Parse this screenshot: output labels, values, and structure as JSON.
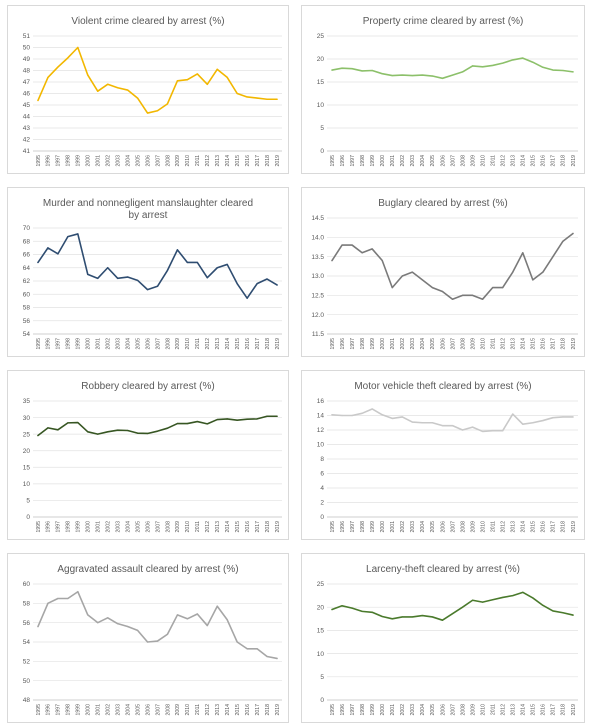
{
  "chart_data": [
    {
      "type": "line",
      "title": "Violent crime cleared by arrest (%)",
      "color": "#f2b700",
      "ylim": [
        41,
        51
      ],
      "ystep": 1,
      "grid": true,
      "x": [
        "1995",
        "1996",
        "1997",
        "1998",
        "1999",
        "2000",
        "2001",
        "2002",
        "2003",
        "2004",
        "2005",
        "2006",
        "2007",
        "2008",
        "2009",
        "2010",
        "2011",
        "2012",
        "2013",
        "2014",
        "2015",
        "2016",
        "2017",
        "2018",
        "2019"
      ],
      "series": [
        {
          "values": [
            45.4,
            47.4,
            48.3,
            49.1,
            50.0,
            47.6,
            46.2,
            46.8,
            46.5,
            46.3,
            45.6,
            44.3,
            44.5,
            45.1,
            47.1,
            47.2,
            47.7,
            46.8,
            48.1,
            47.4,
            46.0,
            45.7,
            45.6,
            45.5,
            45.5
          ]
        }
      ]
    },
    {
      "type": "line",
      "title": "Property crime cleared by arrest (%)",
      "color": "#8cc06a",
      "ylim": [
        0,
        25
      ],
      "ystep": 5,
      "grid": true,
      "x": [
        "1995",
        "1996",
        "1997",
        "1998",
        "1999",
        "2000",
        "2001",
        "2002",
        "2003",
        "2004",
        "2005",
        "2006",
        "2007",
        "2008",
        "2009",
        "2010",
        "2011",
        "2012",
        "2013",
        "2014",
        "2015",
        "2016",
        "2017",
        "2018",
        "2019"
      ],
      "series": [
        {
          "values": [
            17.6,
            18.0,
            17.9,
            17.4,
            17.5,
            16.8,
            16.4,
            16.5,
            16.4,
            16.5,
            16.3,
            15.8,
            16.5,
            17.2,
            18.5,
            18.3,
            18.6,
            19.1,
            19.8,
            20.2,
            19.3,
            18.2,
            17.6,
            17.5,
            17.2
          ]
        }
      ]
    },
    {
      "type": "line",
      "title": "Murder and nonnegligent manslaughter cleared by arrest",
      "title_lines": [
        "Murder and nonnegligent manslaughter cleared",
        "by arrest"
      ],
      "color": "#2f4d71",
      "ylim": [
        54,
        70
      ],
      "ystep": 2,
      "grid": true,
      "x": [
        "1995",
        "1996",
        "1997",
        "1998",
        "1999",
        "2000",
        "2001",
        "2002",
        "2003",
        "2004",
        "2005",
        "2006",
        "2007",
        "2008",
        "2009",
        "2010",
        "2011",
        "2012",
        "2013",
        "2014",
        "2015",
        "2016",
        "2017",
        "2018",
        "2019"
      ],
      "series": [
        {
          "values": [
            64.8,
            67.0,
            66.1,
            68.7,
            69.1,
            63.0,
            62.4,
            64.0,
            62.4,
            62.6,
            62.1,
            60.7,
            61.2,
            63.6,
            66.7,
            64.8,
            64.8,
            62.5,
            64.0,
            64.5,
            61.6,
            59.4,
            61.6,
            62.3,
            61.4
          ]
        }
      ]
    },
    {
      "type": "line",
      "title": "Buglary cleared by arrest (%)",
      "color": "#7a7a7a",
      "ylim": [
        11.5,
        14.5
      ],
      "ystep": 0.5,
      "grid": true,
      "x": [
        "1995",
        "1996",
        "1997",
        "1998",
        "1999",
        "2000",
        "2001",
        "2002",
        "2003",
        "2004",
        "2005",
        "2006",
        "2007",
        "2008",
        "2009",
        "2010",
        "2011",
        "2012",
        "2013",
        "2014",
        "2015",
        "2016",
        "2017",
        "2018",
        "2019"
      ],
      "series": [
        {
          "values": [
            13.4,
            13.8,
            13.8,
            13.6,
            13.7,
            13.4,
            12.7,
            13.0,
            13.1,
            12.9,
            12.7,
            12.6,
            12.4,
            12.5,
            12.5,
            12.4,
            12.7,
            12.7,
            13.1,
            13.6,
            12.9,
            13.1,
            13.5,
            13.9,
            14.1
          ]
        }
      ]
    },
    {
      "type": "line",
      "title": "Robbery cleared by arrest (%)",
      "color": "#375623",
      "ylim": [
        0,
        35
      ],
      "ystep": 5,
      "grid": true,
      "x": [
        "1995",
        "1996",
        "1997",
        "1998",
        "1999",
        "2000",
        "2001",
        "2002",
        "2003",
        "2004",
        "2005",
        "2006",
        "2007",
        "2008",
        "2009",
        "2010",
        "2011",
        "2012",
        "2013",
        "2014",
        "2015",
        "2016",
        "2017",
        "2018",
        "2019"
      ],
      "series": [
        {
          "values": [
            24.6,
            26.9,
            26.3,
            28.4,
            28.5,
            25.7,
            25.0,
            25.7,
            26.2,
            26.1,
            25.3,
            25.2,
            25.9,
            26.8,
            28.2,
            28.2,
            28.8,
            28.1,
            29.4,
            29.6,
            29.2,
            29.5,
            29.6,
            30.4,
            30.4
          ]
        }
      ]
    },
    {
      "type": "line",
      "title": "Motor vehicle theft cleared by arrest (%)",
      "color": "#c9c9c9",
      "ylim": [
        0,
        16
      ],
      "ystep": 2,
      "grid": true,
      "x": [
        "1995",
        "1996",
        "1997",
        "1998",
        "1999",
        "2000",
        "2001",
        "2002",
        "2003",
        "2004",
        "2005",
        "2006",
        "2007",
        "2008",
        "2009",
        "2010",
        "2011",
        "2012",
        "2013",
        "2014",
        "2015",
        "2016",
        "2017",
        "2018",
        "2019"
      ],
      "series": [
        {
          "values": [
            14.1,
            14.0,
            14.0,
            14.3,
            14.9,
            14.1,
            13.6,
            13.8,
            13.1,
            13.0,
            13.0,
            12.6,
            12.6,
            12.0,
            12.4,
            11.8,
            11.9,
            11.9,
            14.2,
            12.8,
            13.0,
            13.3,
            13.7,
            13.8,
            13.8
          ]
        }
      ]
    },
    {
      "type": "line",
      "title": "Aggravated assault cleared by arrest (%)",
      "color": "#a6a6a6",
      "ylim": [
        48,
        60
      ],
      "ystep": 2,
      "grid": true,
      "x": [
        "1995",
        "1996",
        "1997",
        "1998",
        "1999",
        "2000",
        "2001",
        "2002",
        "2003",
        "2004",
        "2005",
        "2006",
        "2007",
        "2008",
        "2009",
        "2010",
        "2011",
        "2012",
        "2013",
        "2014",
        "2015",
        "2016",
        "2017",
        "2018",
        "2019"
      ],
      "series": [
        {
          "values": [
            55.6,
            58.0,
            58.5,
            58.5,
            59.2,
            56.8,
            56.0,
            56.5,
            55.9,
            55.6,
            55.2,
            54.0,
            54.1,
            54.8,
            56.8,
            56.4,
            56.9,
            55.7,
            57.7,
            56.3,
            54.0,
            53.3,
            53.3,
            52.5,
            52.3
          ]
        }
      ]
    },
    {
      "type": "line",
      "title": "Larceny-theft cleared by arrest (%)",
      "color": "#4a7a2c",
      "ylim": [
        0,
        25
      ],
      "ystep": 5,
      "grid": true,
      "x": [
        "1995",
        "1996",
        "1997",
        "1998",
        "1999",
        "2000",
        "2001",
        "2002",
        "2003",
        "2004",
        "2005",
        "2006",
        "2007",
        "2008",
        "2009",
        "2010",
        "2011",
        "2012",
        "2013",
        "2014",
        "2015",
        "2016",
        "2017",
        "2018",
        "2019"
      ],
      "series": [
        {
          "values": [
            19.5,
            20.3,
            19.8,
            19.1,
            18.9,
            18.0,
            17.5,
            17.9,
            17.9,
            18.2,
            17.9,
            17.2,
            18.6,
            20.0,
            21.5,
            21.1,
            21.6,
            22.1,
            22.5,
            23.2,
            22.0,
            20.4,
            19.2,
            18.8,
            18.3
          ]
        }
      ]
    }
  ]
}
